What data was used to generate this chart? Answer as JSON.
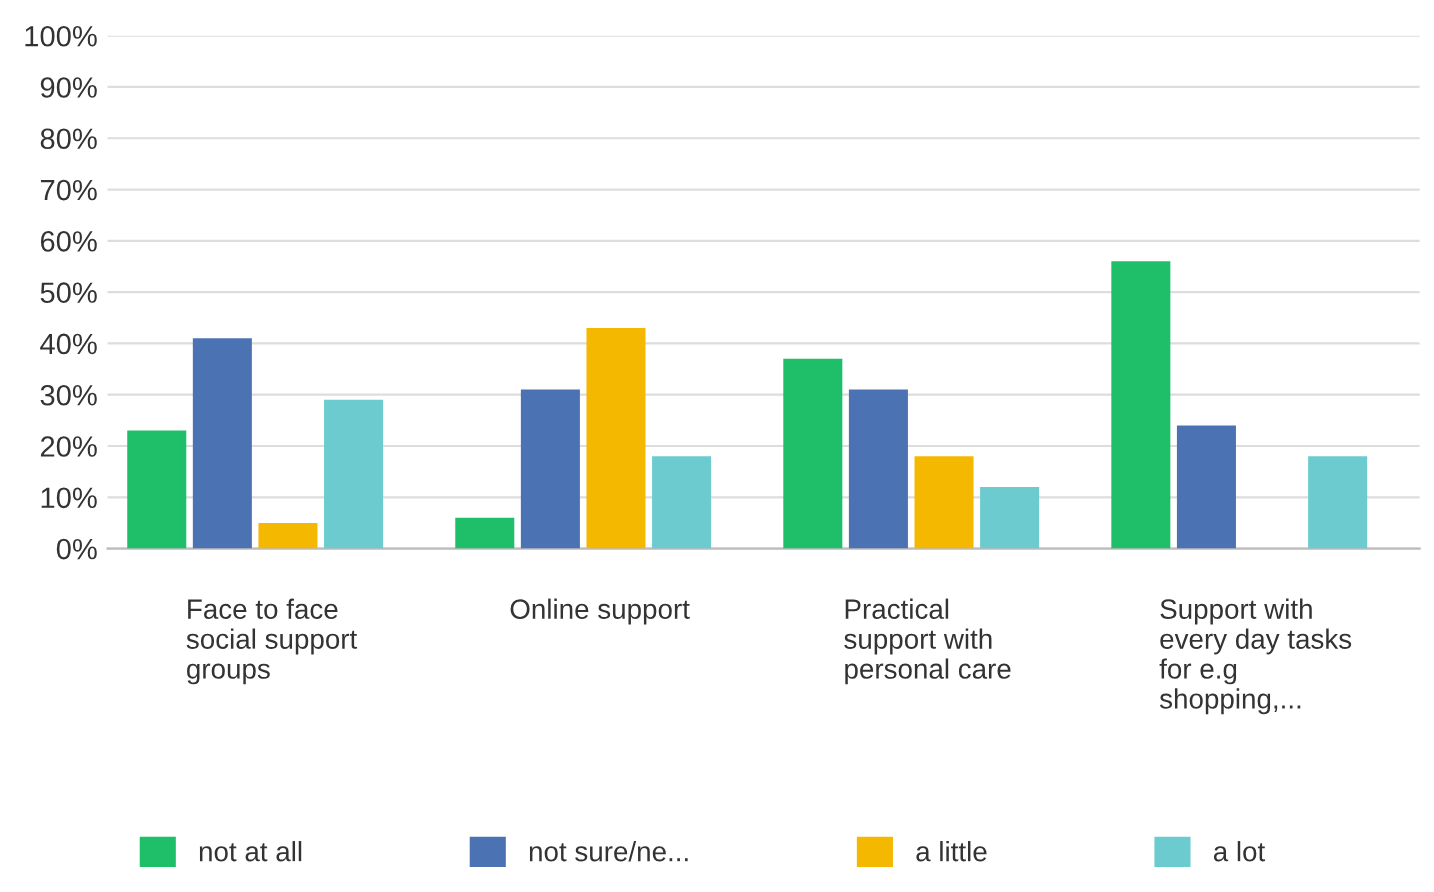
{
  "chart_data": {
    "type": "bar",
    "categories": [
      "Face to face\nsocial support\ngroups",
      "Online support",
      "Practical\nsupport with\npersonal care",
      "Support with\nevery day tasks\nfor e.g\nshopping,..."
    ],
    "series": [
      {
        "name": "not at all",
        "color": "#1fbf6a",
        "values": [
          23,
          6,
          37,
          56
        ]
      },
      {
        "name": "not sure/ne...",
        "color": "#4b73b4",
        "values": [
          41,
          31,
          31,
          24
        ]
      },
      {
        "name": "a little",
        "color": "#f5b800",
        "values": [
          5,
          43,
          18,
          0
        ]
      },
      {
        "name": "a lot",
        "color": "#6bcbcf",
        "values": [
          29,
          18,
          12,
          18
        ]
      }
    ],
    "ylim": [
      0,
      100
    ],
    "yticks": [
      {
        "value": 0,
        "label": "0%"
      },
      {
        "value": 10,
        "label": "10%"
      },
      {
        "value": 20,
        "label": "20%"
      },
      {
        "value": 30,
        "label": "30%"
      },
      {
        "value": 40,
        "label": "40%"
      },
      {
        "value": 50,
        "label": "50%"
      },
      {
        "value": 60,
        "label": "60%"
      },
      {
        "value": 70,
        "label": "70%"
      },
      {
        "value": 80,
        "label": "80%"
      },
      {
        "value": 90,
        "label": "90%"
      },
      {
        "value": 100,
        "label": "100%"
      }
    ],
    "grid": "y",
    "legend": "bottom"
  }
}
